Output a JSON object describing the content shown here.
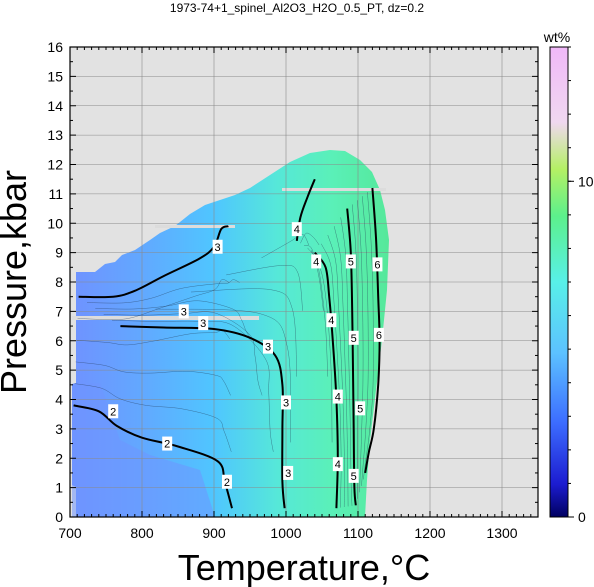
{
  "chart_data": {
    "type": "heatmap",
    "title": "1973-74+1_spinel_Al2O3_H2O_0.5_PT, dz=0.2",
    "xlabel": "Temperature,°C",
    "ylabel": "Pressure,kbar",
    "xlim": [
      700,
      1350
    ],
    "ylim": [
      0,
      16
    ],
    "x_ticks": [
      700,
      800,
      900,
      1000,
      1100,
      1200,
      1300
    ],
    "y_ticks": [
      0,
      1,
      2,
      3,
      4,
      5,
      6,
      7,
      8,
      9,
      10,
      11,
      12,
      13,
      14,
      15,
      16
    ],
    "grid": true,
    "background_no_data": "#e2e2e2",
    "colorbar": {
      "label": "wt%",
      "range": [
        0,
        14
      ],
      "ticks": [
        0,
        10
      ],
      "tick_labels": [
        "0",
        "10"
      ],
      "placement": "right"
    },
    "contours": [
      {
        "level": "2",
        "points": [
          [
            705,
            3.8
          ],
          [
            740,
            3.6
          ],
          [
            765,
            3.1
          ],
          [
            800,
            2.7
          ],
          [
            850,
            2.4
          ],
          [
            905,
            1.9
          ],
          [
            915,
            1.2
          ],
          [
            925,
            0.3
          ]
        ]
      },
      {
        "level": "3",
        "points": [
          [
            712,
            7.5
          ],
          [
            760,
            7.5
          ],
          [
            790,
            7.7
          ],
          [
            830,
            8.2
          ],
          [
            880,
            8.8
          ],
          [
            900,
            9.2
          ],
          [
            910,
            9.8
          ],
          [
            920,
            9.9
          ]
        ]
      },
      {
        "level": "3",
        "points": [
          [
            770,
            6.5
          ],
          [
            830,
            6.45
          ],
          [
            900,
            6.4
          ],
          [
            950,
            6.1
          ],
          [
            985,
            5.5
          ],
          [
            995,
            4.5
          ],
          [
            995,
            3.0
          ],
          [
            995,
            1.2
          ],
          [
            998,
            0.3
          ]
        ]
      },
      {
        "level": "4",
        "points": [
          [
            1015,
            9.4
          ],
          [
            1020,
            10.2
          ],
          [
            1030,
            10.9
          ],
          [
            1040,
            11.5
          ]
        ]
      },
      {
        "level": "4",
        "points": [
          [
            1040,
            9.0
          ],
          [
            1055,
            8.5
          ],
          [
            1060,
            7.5
          ],
          [
            1065,
            6.0
          ],
          [
            1070,
            4.0
          ],
          [
            1072,
            2.0
          ],
          [
            1070,
            0.3
          ]
        ]
      },
      {
        "level": "5",
        "points": [
          [
            1085,
            10.5
          ],
          [
            1090,
            9.0
          ],
          [
            1092,
            7.0
          ],
          [
            1093,
            5.0
          ],
          [
            1094,
            3.0
          ],
          [
            1095,
            1.0
          ],
          [
            1097,
            0.4
          ]
        ]
      },
      {
        "level": "6",
        "points": [
          [
            1120,
            11.2
          ],
          [
            1125,
            9.5
          ],
          [
            1128,
            7.5
          ],
          [
            1130,
            6.0
          ],
          [
            1128,
            4.5
          ],
          [
            1122,
            3.0
          ],
          [
            1115,
            2.2
          ],
          [
            1110,
            1.5
          ]
        ]
      }
    ],
    "contour_labels": [
      {
        "text": "2",
        "x": 760,
        "y": 3.6
      },
      {
        "text": "2",
        "x": 835,
        "y": 2.5
      },
      {
        "text": "2",
        "x": 918,
        "y": 1.2
      },
      {
        "text": "3",
        "x": 905,
        "y": 9.2
      },
      {
        "text": "3",
        "x": 858,
        "y": 7.0
      },
      {
        "text": "3",
        "x": 885,
        "y": 6.6
      },
      {
        "text": "3",
        "x": 975,
        "y": 5.8
      },
      {
        "text": "3",
        "x": 1000,
        "y": 3.9
      },
      {
        "text": "3",
        "x": 1003,
        "y": 1.5
      },
      {
        "text": "4",
        "x": 1015,
        "y": 9.8
      },
      {
        "text": "4",
        "x": 1042,
        "y": 8.7
      },
      {
        "text": "4",
        "x": 1063,
        "y": 6.7
      },
      {
        "text": "4",
        "x": 1072,
        "y": 4.1
      },
      {
        "text": "4",
        "x": 1072,
        "y": 1.8
      },
      {
        "text": "5",
        "x": 1090,
        "y": 8.7
      },
      {
        "text": "5",
        "x": 1094,
        "y": 6.1
      },
      {
        "text": "5",
        "x": 1103,
        "y": 3.7
      },
      {
        "text": "5",
        "x": 1094,
        "y": 1.4
      },
      {
        "text": "6",
        "x": 1127,
        "y": 8.6
      },
      {
        "text": "6",
        "x": 1129,
        "y": 6.2
      }
    ]
  }
}
